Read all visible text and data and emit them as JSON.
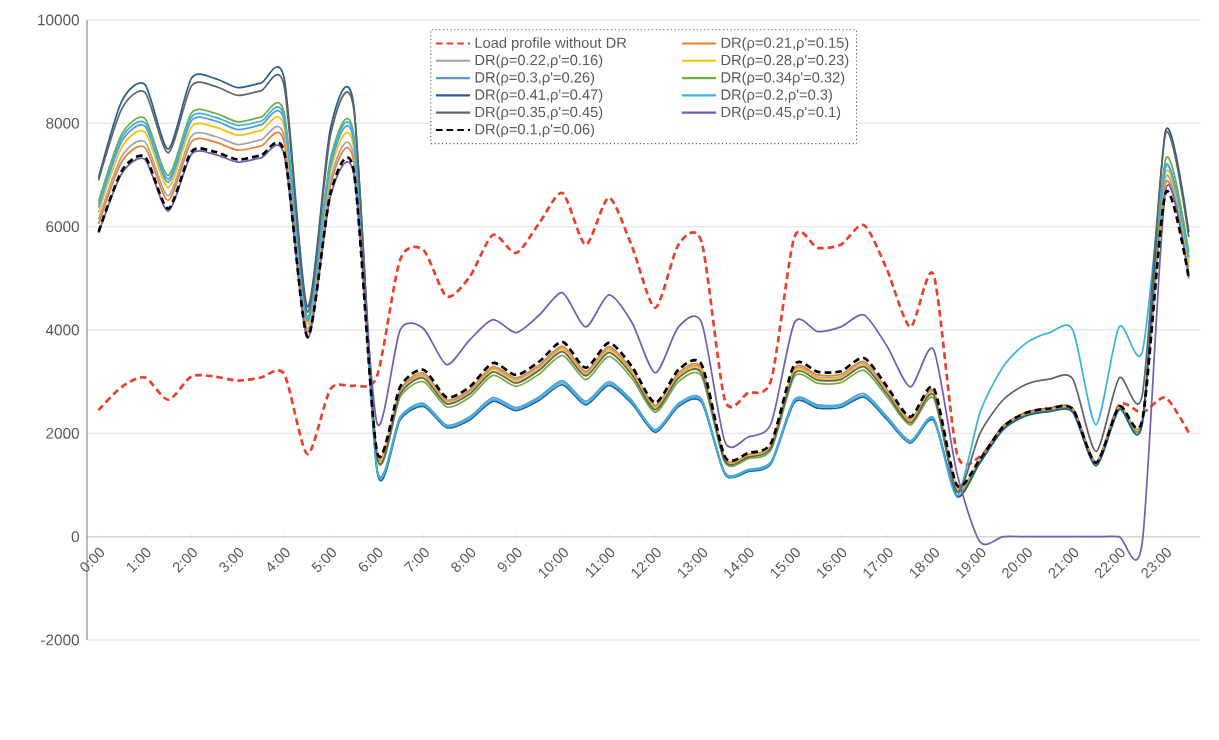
{
  "chart_data": {
    "type": "line",
    "x": [
      0,
      0.5,
      1,
      1.5,
      2,
      2.5,
      3,
      3.5,
      4,
      4.5,
      5,
      5.5,
      6,
      6.5,
      7,
      7.5,
      8,
      8.5,
      9,
      9.5,
      10,
      10.5,
      11,
      11.5,
      12,
      12.5,
      13,
      13.5,
      14,
      14.5,
      15,
      15.5,
      16,
      16.5,
      17,
      17.5,
      18,
      18.5,
      19,
      19.5,
      20,
      20.5,
      21,
      21.5,
      22,
      22.5,
      23,
      23.5
    ],
    "xlim": [
      -0.25,
      23.75
    ],
    "xticks": [
      {
        "value": 0,
        "label": "0:00"
      },
      {
        "value": 1,
        "label": "1:00"
      },
      {
        "value": 2,
        "label": "2:00"
      },
      {
        "value": 3,
        "label": "3:00"
      },
      {
        "value": 4,
        "label": "4:00"
      },
      {
        "value": 5,
        "label": "5:00"
      },
      {
        "value": 6,
        "label": "6:00"
      },
      {
        "value": 7,
        "label": "7:00"
      },
      {
        "value": 8,
        "label": "8:00"
      },
      {
        "value": 9,
        "label": "9:00"
      },
      {
        "value": 10,
        "label": "10:00"
      },
      {
        "value": 11,
        "label": "11:00"
      },
      {
        "value": 12,
        "label": "12:00"
      },
      {
        "value": 13,
        "label": "13:00"
      },
      {
        "value": 14,
        "label": "14:00"
      },
      {
        "value": 15,
        "label": "15:00"
      },
      {
        "value": 16,
        "label": "16:00"
      },
      {
        "value": 17,
        "label": "17:00"
      },
      {
        "value": 18,
        "label": "18:00"
      },
      {
        "value": 19,
        "label": "19:00"
      },
      {
        "value": 20,
        "label": "20:00"
      },
      {
        "value": 21,
        "label": "21:00"
      },
      {
        "value": 22,
        "label": "22:00"
      },
      {
        "value": 23,
        "label": "23:00"
      }
    ],
    "ylim": [
      -2000,
      10000
    ],
    "yticks": [
      -2000,
      0,
      2000,
      4000,
      6000,
      8000,
      10000
    ],
    "grid": "y",
    "legend": "top",
    "line_style": "solid",
    "series": [
      {
        "name": "Load profile without DR",
        "color": "#e8402a",
        "line_style": "dashed",
        "values": [
          2450,
          2900,
          3080,
          2650,
          3100,
          3100,
          3020,
          3080,
          3150,
          1600,
          2860,
          2920,
          3100,
          5360,
          5550,
          4650,
          5030,
          5840,
          5490,
          6070,
          6650,
          5650,
          6560,
          5610,
          4430,
          5650,
          5700,
          2650,
          2780,
          3040,
          5800,
          5590,
          5650,
          6030,
          5160,
          4060,
          5070,
          1620,
          1550,
          2130,
          2400,
          2480,
          2470,
          1430,
          2550,
          2400,
          2690,
          2010
        ]
      },
      {
        "name": "DR(ρ=0.21,ρ'=0.15)",
        "color": "#ed7d31",
        "values": [
          6050,
          7260,
          7530,
          6510,
          7640,
          7640,
          7480,
          7560,
          7640,
          3970,
          6820,
          7260,
          1620,
          2840,
          3170,
          2650,
          2840,
          3290,
          3070,
          3320,
          3690,
          3200,
          3680,
          3220,
          2540,
          3170,
          3260,
          1520,
          1590,
          1780,
          3260,
          3130,
          3140,
          3390,
          2840,
          2270,
          2820,
          960,
          1480,
          2120,
          2390,
          2470,
          2460,
          1420,
          2510,
          2250,
          6850,
          5100
        ]
      },
      {
        "name": "DR(ρ=0.22,ρ'=0.16)",
        "color": "#a5a5a5",
        "values": [
          6140,
          7360,
          7640,
          6600,
          7750,
          7750,
          7590,
          7680,
          7750,
          4020,
          6920,
          7360,
          1600,
          2810,
          3130,
          2620,
          2810,
          3260,
          3040,
          3290,
          3660,
          3170,
          3640,
          3190,
          2510,
          3130,
          3230,
          1500,
          1570,
          1770,
          3230,
          3090,
          3100,
          3360,
          2810,
          2250,
          2790,
          940,
          1470,
          2110,
          2380,
          2460,
          2450,
          1410,
          2500,
          2240,
          6950,
          5200
        ]
      },
      {
        "name": "DR(ρ=0.28,ρ'=0.23)",
        "color": "#ffc000",
        "values": [
          6280,
          7540,
          7830,
          6760,
          7930,
          7930,
          7770,
          7860,
          7930,
          4120,
          7080,
          7540,
          1580,
          2780,
          3100,
          2590,
          2780,
          3230,
          3000,
          3250,
          3620,
          3140,
          3600,
          3160,
          2490,
          3100,
          3200,
          1490,
          1560,
          1750,
          3200,
          3060,
          3070,
          3320,
          2780,
          2230,
          2760,
          920,
          1460,
          2100,
          2370,
          2450,
          2440,
          1400,
          2490,
          2230,
          7050,
          5300
        ]
      },
      {
        "name": "DR(ρ=0.3,ρ'=0.26)",
        "color": "#5b9bd5",
        "values": [
          6370,
          7650,
          7940,
          6860,
          8050,
          8050,
          7880,
          7970,
          8050,
          4180,
          7180,
          7650,
          1320,
          2320,
          2580,
          2160,
          2320,
          2690,
          2500,
          2710,
          3020,
          2620,
          3000,
          2630,
          2070,
          2580,
          2660,
          1240,
          1300,
          1460,
          2660,
          2550,
          2560,
          2770,
          2320,
          1860,
          2300,
          800,
          1440,
          2080,
          2350,
          2430,
          2420,
          1380,
          2470,
          2210,
          7150,
          5400
        ]
      },
      {
        "name": "DR(ρ=0.34ρ'=0.32)",
        "color": "#70ad47",
        "values": [
          6490,
          7790,
          8090,
          6990,
          8200,
          8200,
          8030,
          8120,
          8200,
          4250,
          7320,
          7790,
          1530,
          2700,
          3000,
          2510,
          2700,
          3120,
          2910,
          3150,
          3510,
          3040,
          3490,
          3060,
          2410,
          3000,
          3100,
          1440,
          1510,
          1690,
          3100,
          2970,
          2980,
          3220,
          2700,
          2160,
          2680,
          880,
          1450,
          2090,
          2360,
          2440,
          2430,
          1390,
          2480,
          2220,
          7300,
          5500
        ]
      },
      {
        "name": "DR(ρ=0.41,ρ'=0.47)",
        "color": "#255e91",
        "values": [
          6950,
          8430,
          8750,
          7500,
          8870,
          8870,
          8690,
          8780,
          8870,
          4450,
          7910,
          8350,
          1290,
          2260,
          2520,
          2110,
          2260,
          2620,
          2440,
          2640,
          2940,
          2550,
          2930,
          2570,
          2020,
          2520,
          2600,
          1210,
          1260,
          1420,
          2600,
          2490,
          2500,
          2700,
          2260,
          1810,
          2250,
          780,
          1430,
          2070,
          2340,
          2420,
          2410,
          1370,
          2460,
          2200,
          7850,
          5900
        ]
      },
      {
        "name": "DR(ρ=0.2,ρ'=0.3)",
        "color": "#3bb3e0",
        "values": [
          6430,
          7720,
          8010,
          6920,
          8120,
          8120,
          7960,
          8040,
          8120,
          4220,
          7250,
          7720,
          1300,
          2290,
          2550,
          2130,
          2290,
          2650,
          2470,
          2680,
          2980,
          2580,
          2960,
          2600,
          2050,
          2550,
          2630,
          1220,
          1280,
          1440,
          2630,
          2520,
          2530,
          2730,
          2290,
          1830,
          2280,
          790,
          2400,
          3290,
          3750,
          3950,
          4000,
          2170,
          4060,
          3580,
          7200,
          5400
        ]
      },
      {
        "name": "DR(ρ=0.35,ρ'=0.45)",
        "color": "#636363",
        "values": [
          6900,
          8280,
          8600,
          7430,
          8720,
          8720,
          8540,
          8630,
          8720,
          4350,
          7780,
          8280,
          1570,
          2760,
          3070,
          2570,
          2760,
          3190,
          2970,
          3220,
          3580,
          3110,
          3560,
          3130,
          2460,
          3070,
          3160,
          1470,
          1540,
          1730,
          3160,
          3030,
          3040,
          3290,
          2760,
          2200,
          2740,
          870,
          2000,
          2650,
          2950,
          3050,
          3050,
          1650,
          3070,
          2750,
          7800,
          5800
        ]
      },
      {
        "name": "DR(ρ=0.45,ρ'=0.1)",
        "color": "#7060b0",
        "values": [
          5880,
          7030,
          7300,
          6300,
          7400,
          7400,
          7250,
          7330,
          7400,
          3850,
          6600,
          7030,
          2200,
          4000,
          4030,
          3330,
          3810,
          4200,
          3950,
          4290,
          4720,
          4060,
          4680,
          4140,
          3170,
          4060,
          4140,
          1840,
          1930,
          2200,
          4140,
          3970,
          4060,
          4290,
          3680,
          2900,
          3620,
          1240,
          -100,
          0,
          0,
          0,
          0,
          0,
          0,
          -100,
          6700,
          5000
        ]
      },
      {
        "name": "DR(ρ=0.1,ρ'=0.06)",
        "color": "#000000",
        "line_style": "dashed",
        "values": [
          5900,
          7080,
          7350,
          6350,
          7450,
          7450,
          7300,
          7380,
          7450,
          3870,
          6650,
          7080,
          1650,
          2900,
          3230,
          2700,
          2900,
          3360,
          3130,
          3390,
          3770,
          3270,
          3750,
          3290,
          2590,
          3230,
          3330,
          1550,
          1620,
          1820,
          3330,
          3190,
          3200,
          3460,
          2900,
          2320,
          2880,
          1000,
          1500,
          2130,
          2400,
          2480,
          2470,
          1430,
          2520,
          2260,
          6650,
          5010
        ]
      }
    ]
  }
}
